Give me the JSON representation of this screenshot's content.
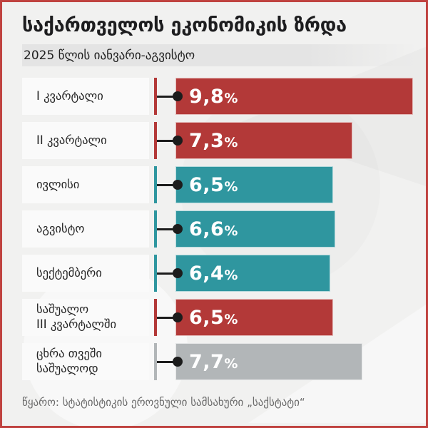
{
  "header": {
    "title": "საქართველოს ეკონომიკის ზრდა",
    "subtitle": "2025 წლის იანვარი-აგვისტო"
  },
  "footer": {
    "source": "წყარო: სტატისტიკის ეროვნული სამსახური „საქსტატი“"
  },
  "colors": {
    "bar_red": "#b33938",
    "bar_teal": "#2f969f",
    "bar_gray": "#b2b6b8",
    "frame_red": "#c04340",
    "frame_teal": "#3a9ba8",
    "dot_black": "#1c1c1c",
    "background": "#f1f1f0"
  },
  "chart_data": {
    "type": "bar",
    "orientation": "horizontal",
    "title": "საქართველოს ეკონომიკის ზრდა",
    "subtitle": "2025 წლის იანვარი-აგვისტო",
    "unit": "%",
    "xlim": [
      0,
      9.8
    ],
    "grid": false,
    "legend": false,
    "source": "წყარო: სტატისტიკის ეროვნული სამსახური „საქსტატი“",
    "rows": [
      {
        "label": "I კვარტალი",
        "value": 9.8,
        "value_label": "9,8",
        "unit": "%",
        "color": "#b33938"
      },
      {
        "label": "II კვარტალი",
        "value": 7.3,
        "value_label": "7,3",
        "unit": "%",
        "color": "#b33938"
      },
      {
        "label": "ივლისი",
        "value": 6.5,
        "value_label": "6,5",
        "unit": "%",
        "color": "#2f969f"
      },
      {
        "label": "აგვისტო",
        "value": 6.6,
        "value_label": "6,6",
        "unit": "%",
        "color": "#2f969f"
      },
      {
        "label": "სექტემბერი",
        "value": 6.4,
        "value_label": "6,4",
        "unit": "%",
        "color": "#2f969f"
      },
      {
        "label": "საშუალო\nIII კვარტალში",
        "value": 6.5,
        "value_label": "6,5",
        "unit": "%",
        "color": "#b33938"
      },
      {
        "label": "ცხრა თვეში\nსაშუალოდ",
        "value": 7.7,
        "value_label": "7,7",
        "unit": "%",
        "color": "#b2b6b8"
      }
    ]
  }
}
